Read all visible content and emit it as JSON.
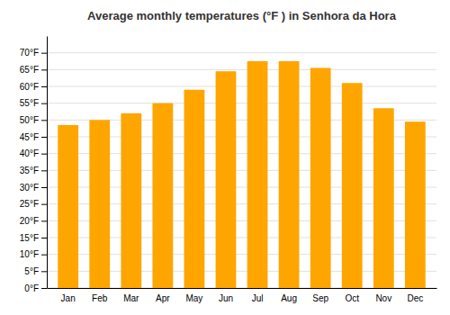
{
  "chart_data": {
    "type": "bar",
    "title": "Average monthly temperatures (°F ) in Senhora da Hora",
    "categories": [
      "Jan",
      "Feb",
      "Mar",
      "Apr",
      "May",
      "Jun",
      "Jul",
      "Aug",
      "Sep",
      "Oct",
      "Nov",
      "Dec"
    ],
    "values": [
      48.5,
      50.0,
      52.0,
      55.0,
      59.0,
      64.5,
      67.5,
      67.5,
      65.5,
      61.0,
      53.5,
      49.5
    ],
    "color": "#FFA500",
    "ylim": [
      0,
      75
    ],
    "yticks": [
      {
        "value": 0,
        "label": "0°F"
      },
      {
        "value": 5,
        "label": "5°F"
      },
      {
        "value": 10,
        "label": "10°F"
      },
      {
        "value": 15,
        "label": "15°F"
      },
      {
        "value": 20,
        "label": "20°F"
      },
      {
        "value": 25,
        "label": "25°F"
      },
      {
        "value": 30,
        "label": "30°F"
      },
      {
        "value": 35,
        "label": "35°F"
      },
      {
        "value": 40,
        "label": "40°F"
      },
      {
        "value": 45,
        "label": "45°F"
      },
      {
        "value": 50,
        "label": "50°F"
      },
      {
        "value": 55,
        "label": "55°F"
      },
      {
        "value": 60,
        "label": "60°F"
      },
      {
        "value": 65,
        "label": "65°F"
      },
      {
        "value": 70,
        "label": "70°F"
      }
    ],
    "grid": true
  }
}
